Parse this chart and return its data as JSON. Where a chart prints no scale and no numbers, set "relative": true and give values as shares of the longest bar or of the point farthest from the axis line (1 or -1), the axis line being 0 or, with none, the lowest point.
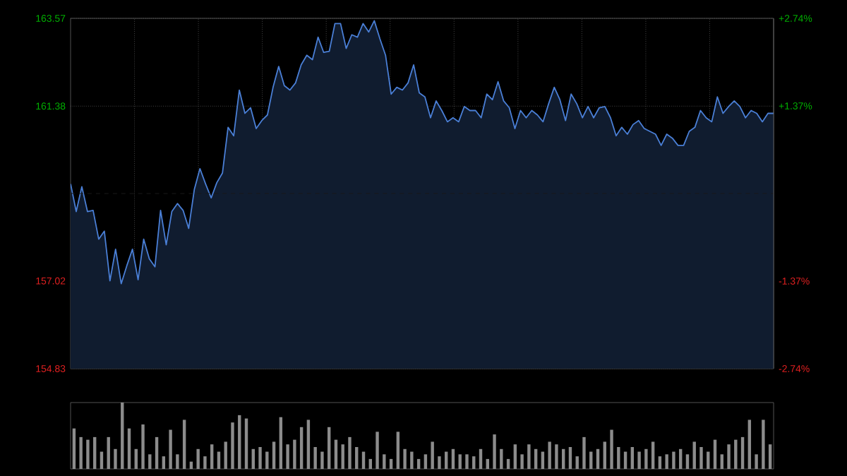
{
  "chart_data": [
    {
      "type": "area",
      "categories": [
        null,
        null,
        null,
        null,
        null,
        null,
        null,
        null,
        null,
        null,
        null,
        null,
        null,
        null,
        null,
        null,
        null,
        null,
        null,
        null,
        null,
        null,
        null,
        null,
        null,
        null,
        null,
        null,
        null,
        null,
        null,
        null,
        null,
        null,
        null,
        null,
        null,
        null,
        null,
        null,
        null,
        null,
        null,
        null,
        null,
        null,
        null,
        null,
        null,
        null,
        null,
        null,
        null,
        null,
        null,
        null,
        null,
        null,
        null,
        null,
        null,
        null,
        null,
        null,
        null,
        null,
        null,
        null,
        null,
        null,
        null,
        null,
        null,
        null,
        null,
        null,
        null,
        null,
        null,
        null,
        null,
        null,
        null,
        null,
        null,
        null,
        null,
        null,
        null,
        null,
        null,
        null,
        null,
        null,
        null,
        null,
        null,
        null,
        null,
        null,
        null,
        null,
        null,
        null,
        null,
        null,
        null,
        null,
        null,
        null,
        null,
        null,
        null,
        null,
        null,
        null,
        null,
        null,
        null,
        null,
        null,
        null,
        null,
        null,
        null,
        null
      ],
      "series": [
        {
          "color": "#4a7fd6",
          "values": [
            159.44,
            158.75,
            159.37,
            158.75,
            158.78,
            158.06,
            158.26,
            157.02,
            157.81,
            156.95,
            157.4,
            157.81,
            157.05,
            158.06,
            157.57,
            157.37,
            158.78,
            157.92,
            158.75,
            158.95,
            158.78,
            158.33,
            159.3,
            159.82,
            159.44,
            159.09,
            159.47,
            159.71,
            160.85,
            160.64,
            161.78,
            161.2,
            161.34,
            160.82,
            161.02,
            161.16,
            161.85,
            162.37,
            161.89,
            161.78,
            161.96,
            162.41,
            162.65,
            162.54,
            163.1,
            162.72,
            162.75,
            163.44,
            163.44,
            162.82,
            163.16,
            163.1,
            163.44,
            163.23,
            163.51,
            163.06,
            162.65,
            161.68,
            161.85,
            161.78,
            161.96,
            162.41,
            161.71,
            161.61,
            161.09,
            161.51,
            161.27,
            160.99,
            161.09,
            160.99,
            161.37,
            161.27,
            161.27,
            161.09,
            161.68,
            161.54,
            161.99,
            161.51,
            161.34,
            160.82,
            161.27,
            161.09,
            161.27,
            161.16,
            160.99,
            161.44,
            161.85,
            161.54,
            161.02,
            161.68,
            161.44,
            161.09,
            161.37,
            161.09,
            161.34,
            161.37,
            161.09,
            160.64,
            160.85,
            160.68,
            160.92,
            161.02,
            160.82,
            160.75,
            160.68,
            160.4,
            160.68,
            160.58,
            160.4,
            160.4,
            160.75,
            160.85,
            161.27,
            161.09,
            160.99,
            161.61,
            161.2,
            161.37,
            161.51,
            161.37,
            161.09,
            161.27,
            161.2,
            160.99,
            161.2,
            161.2
          ]
        }
      ],
      "ylim": [
        154.83,
        163.57
      ],
      "yticks": [
        154.83,
        157.02,
        161.38,
        163.57
      ],
      "y2lim": [
        -2.74,
        2.74
      ],
      "y2ticks": [
        {
          "value": -2.74,
          "label": "-2.74%"
        },
        {
          "value": -1.37,
          "label": "-1.37%"
        },
        {
          "value": 1.37,
          "label": "+1.37%"
        },
        {
          "value": 2.74,
          "label": "+2.74%"
        }
      ],
      "ref_lines": [
        {
          "axis": "y",
          "value": 159.2,
          "line_style": "dashed"
        }
      ],
      "grid": true
    },
    {
      "type": "bar",
      "relative": true,
      "color": "#8c8c8c",
      "categories": [
        null,
        null,
        null,
        null,
        null,
        null,
        null,
        null,
        null,
        null,
        null,
        null,
        null,
        null,
        null,
        null,
        null,
        null,
        null,
        null,
        null,
        null,
        null,
        null,
        null,
        null,
        null,
        null,
        null,
        null,
        null,
        null,
        null,
        null,
        null,
        null,
        null,
        null,
        null,
        null,
        null,
        null,
        null,
        null,
        null,
        null,
        null,
        null,
        null,
        null,
        null,
        null,
        null,
        null,
        null,
        null,
        null,
        null,
        null,
        null,
        null,
        null,
        null,
        null,
        null,
        null,
        null,
        null,
        null,
        null,
        null,
        null,
        null,
        null,
        null,
        null,
        null,
        null,
        null,
        null,
        null,
        null,
        null,
        null,
        null,
        null,
        null,
        null,
        null,
        null,
        null,
        null,
        null,
        null,
        null,
        null,
        null,
        null,
        null,
        null,
        null,
        null
      ],
      "values": [
        0.61,
        0.48,
        0.44,
        0.48,
        0.26,
        0.48,
        0.3,
        1,
        0.61,
        0.3,
        0.67,
        0.22,
        0.48,
        0.19,
        0.59,
        0.22,
        0.74,
        0.11,
        0.3,
        0.19,
        0.37,
        0.26,
        0.41,
        0.7,
        0.81,
        0.76,
        0.3,
        0.33,
        0.26,
        0.41,
        0.78,
        0.37,
        0.44,
        0.63,
        0.74,
        0.33,
        0.26,
        0.63,
        0.44,
        0.37,
        0.48,
        0.33,
        0.26,
        0.15,
        0.56,
        0.22,
        0.15,
        0.56,
        0.3,
        0.26,
        0.15,
        0.22,
        0.41,
        0.19,
        0.26,
        0.3,
        0.22,
        0.22,
        0.19,
        0.3,
        0.15,
        0.52,
        0.3,
        0.15,
        0.37,
        0.22,
        0.37,
        0.3,
        0.26,
        0.41,
        0.37,
        0.3,
        0.33,
        0.19,
        0.48,
        0.26,
        0.3,
        0.41,
        0.59,
        0.33,
        0.26,
        0.33,
        0.26,
        0.3,
        0.41,
        0.19,
        0.22,
        0.26,
        0.3,
        0.22,
        0.41,
        0.33,
        0.26,
        0.44,
        0.22,
        0.37,
        0.44,
        0.48,
        0.74,
        0.22,
        0.74,
        0.37
      ]
    }
  ]
}
